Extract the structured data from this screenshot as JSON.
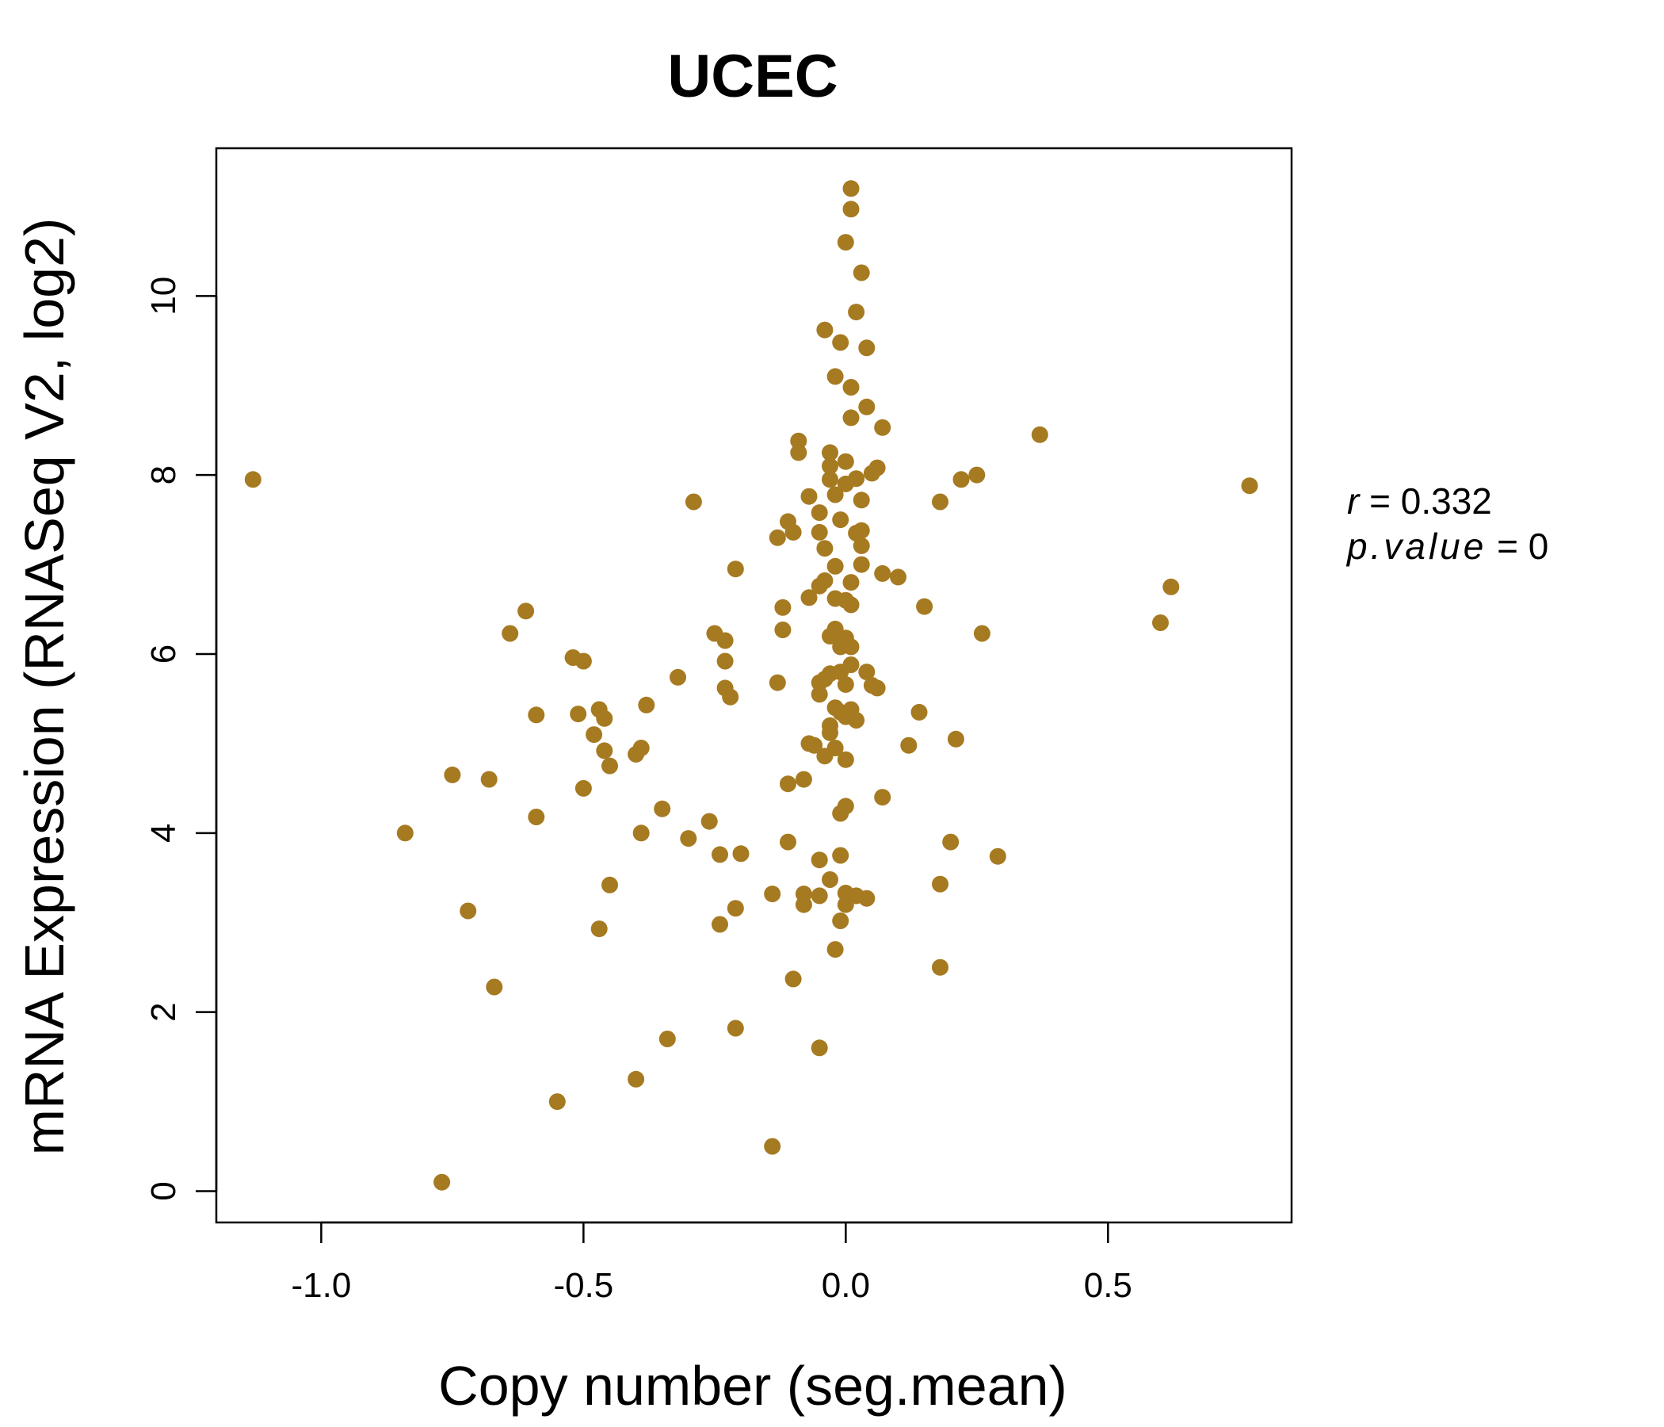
{
  "chart_data": {
    "type": "scatter",
    "title": "UCEC",
    "xlabel": "Copy number (seg.mean)",
    "ylabel": "mRNA Expression (RNASeq V2, log2)",
    "xlim": [
      -1.2,
      0.85
    ],
    "ylim": [
      -0.35,
      11.65
    ],
    "x_ticks": [
      -1.0,
      -0.5,
      0.0,
      0.5
    ],
    "x_tick_labels": [
      "-1.0",
      "-0.5",
      "0.0",
      "0.5"
    ],
    "y_ticks": [
      0,
      2,
      4,
      6,
      8,
      10
    ],
    "y_tick_labels": [
      "0",
      "2",
      "4",
      "6",
      "8",
      "10"
    ],
    "grid": false,
    "legend": "none",
    "point_color": "#A67A21",
    "stats": {
      "r": "0.332",
      "p_value": "0"
    },
    "points": [
      [
        -1.13,
        7.95
      ],
      [
        -0.84,
        4.0
      ],
      [
        -0.77,
        0.1
      ],
      [
        -0.75,
        4.65
      ],
      [
        -0.72,
        3.13
      ],
      [
        -0.68,
        4.6
      ],
      [
        -0.67,
        2.28
      ],
      [
        -0.64,
        6.23
      ],
      [
        -0.61,
        6.48
      ],
      [
        -0.59,
        5.32
      ],
      [
        -0.59,
        4.18
      ],
      [
        -0.55,
        1.0
      ],
      [
        -0.52,
        5.96
      ],
      [
        -0.51,
        5.33
      ],
      [
        -0.5,
        5.92
      ],
      [
        -0.5,
        4.5
      ],
      [
        -0.48,
        5.1
      ],
      [
        -0.47,
        5.38
      ],
      [
        -0.47,
        2.93
      ],
      [
        -0.46,
        4.92
      ],
      [
        -0.46,
        5.28
      ],
      [
        -0.45,
        4.75
      ],
      [
        -0.45,
        3.42
      ],
      [
        -0.4,
        4.88
      ],
      [
        -0.4,
        1.25
      ],
      [
        -0.39,
        4.95
      ],
      [
        -0.38,
        5.43
      ],
      [
        -0.39,
        4.0
      ],
      [
        -0.35,
        4.27
      ],
      [
        -0.34,
        1.7
      ],
      [
        -0.32,
        5.74
      ],
      [
        -0.3,
        3.94
      ],
      [
        -0.29,
        7.7
      ],
      [
        -0.26,
        4.13
      ],
      [
        -0.25,
        6.23
      ],
      [
        -0.24,
        3.76
      ],
      [
        -0.24,
        2.98
      ],
      [
        -0.23,
        5.62
      ],
      [
        -0.23,
        6.15
      ],
      [
        -0.23,
        5.92
      ],
      [
        -0.22,
        5.52
      ],
      [
        -0.21,
        6.95
      ],
      [
        -0.21,
        3.16
      ],
      [
        -0.21,
        1.82
      ],
      [
        -0.2,
        3.77
      ],
      [
        -0.14,
        0.5
      ],
      [
        -0.14,
        3.32
      ],
      [
        -0.13,
        5.68
      ],
      [
        -0.13,
        7.3
      ],
      [
        -0.12,
        6.27
      ],
      [
        -0.12,
        6.52
      ],
      [
        -0.11,
        7.48
      ],
      [
        -0.11,
        4.55
      ],
      [
        -0.11,
        3.9
      ],
      [
        -0.1,
        7.36
      ],
      [
        -0.1,
        2.37
      ],
      [
        -0.09,
        8.38
      ],
      [
        -0.09,
        8.25
      ],
      [
        -0.08,
        4.6
      ],
      [
        -0.08,
        3.2
      ],
      [
        -0.08,
        3.32
      ],
      [
        -0.07,
        5.0
      ],
      [
        -0.07,
        7.76
      ],
      [
        -0.07,
        6.63
      ],
      [
        -0.06,
        4.98
      ],
      [
        -0.05,
        7.36
      ],
      [
        -0.05,
        7.58
      ],
      [
        -0.05,
        6.76
      ],
      [
        -0.05,
        5.68
      ],
      [
        -0.05,
        5.55
      ],
      [
        -0.05,
        3.3
      ],
      [
        -0.05,
        3.7
      ],
      [
        -0.05,
        1.6
      ],
      [
        -0.04,
        9.62
      ],
      [
        -0.04,
        7.18
      ],
      [
        -0.04,
        6.82
      ],
      [
        -0.04,
        4.86
      ],
      [
        -0.04,
        5.72
      ],
      [
        -0.03,
        8.25
      ],
      [
        -0.03,
        8.1
      ],
      [
        -0.03,
        7.95
      ],
      [
        -0.03,
        6.2
      ],
      [
        -0.03,
        5.78
      ],
      [
        -0.03,
        5.2
      ],
      [
        -0.03,
        5.12
      ],
      [
        -0.03,
        3.48
      ],
      [
        -0.02,
        9.1
      ],
      [
        -0.02,
        7.78
      ],
      [
        -0.02,
        6.98
      ],
      [
        -0.02,
        6.62
      ],
      [
        -0.02,
        6.28
      ],
      [
        -0.02,
        5.4
      ],
      [
        -0.02,
        4.95
      ],
      [
        -0.02,
        2.7
      ],
      [
        -0.01,
        9.48
      ],
      [
        -0.01,
        7.5
      ],
      [
        -0.01,
        6.08
      ],
      [
        -0.01,
        5.8
      ],
      [
        -0.01,
        5.35
      ],
      [
        -0.01,
        4.22
      ],
      [
        -0.01,
        3.75
      ],
      [
        -0.01,
        3.02
      ],
      [
        0.0,
        10.6
      ],
      [
        0.0,
        8.15
      ],
      [
        0.0,
        7.9
      ],
      [
        0.0,
        6.6
      ],
      [
        0.0,
        6.18
      ],
      [
        0.0,
        5.66
      ],
      [
        0.0,
        5.3
      ],
      [
        0.0,
        4.3
      ],
      [
        0.0,
        3.33
      ],
      [
        0.0,
        3.2
      ],
      [
        0.0,
        4.82
      ],
      [
        0.01,
        11.2
      ],
      [
        0.01,
        10.97
      ],
      [
        0.01,
        8.98
      ],
      [
        0.01,
        8.64
      ],
      [
        0.01,
        6.55
      ],
      [
        0.01,
        6.8
      ],
      [
        0.01,
        6.08
      ],
      [
        0.01,
        5.88
      ],
      [
        0.01,
        5.38
      ],
      [
        0.02,
        9.82
      ],
      [
        0.02,
        7.96
      ],
      [
        0.02,
        7.35
      ],
      [
        0.02,
        5.26
      ],
      [
        0.02,
        3.3
      ],
      [
        0.03,
        10.26
      ],
      [
        0.03,
        7.72
      ],
      [
        0.03,
        7.38
      ],
      [
        0.03,
        7.21
      ],
      [
        0.03,
        7.0
      ],
      [
        0.04,
        9.42
      ],
      [
        0.04,
        8.76
      ],
      [
        0.04,
        5.8
      ],
      [
        0.04,
        3.27
      ],
      [
        0.05,
        8.02
      ],
      [
        0.05,
        5.65
      ],
      [
        0.06,
        8.08
      ],
      [
        0.06,
        5.62
      ],
      [
        0.07,
        8.53
      ],
      [
        0.07,
        6.9
      ],
      [
        0.07,
        4.4
      ],
      [
        0.1,
        6.86
      ],
      [
        0.12,
        4.98
      ],
      [
        0.14,
        5.35
      ],
      [
        0.15,
        6.53
      ],
      [
        0.18,
        7.7
      ],
      [
        0.18,
        3.43
      ],
      [
        0.18,
        2.5
      ],
      [
        0.2,
        3.9
      ],
      [
        0.21,
        5.05
      ],
      [
        0.22,
        7.95
      ],
      [
        0.25,
        8.0
      ],
      [
        0.26,
        6.23
      ],
      [
        0.29,
        3.74
      ],
      [
        0.37,
        8.45
      ],
      [
        0.6,
        6.35
      ],
      [
        0.62,
        6.75
      ],
      [
        0.77,
        7.88
      ]
    ]
  }
}
